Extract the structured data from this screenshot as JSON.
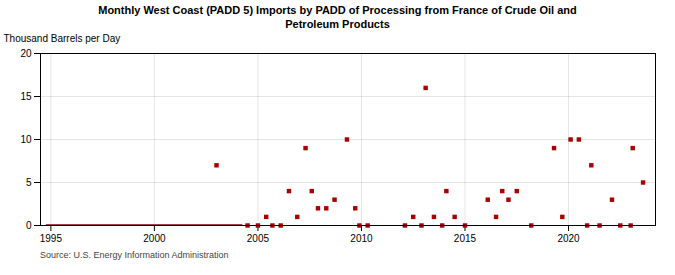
{
  "chart_data": {
    "type": "scatter",
    "title": "Monthly West Coast (PADD 5) Imports by PADD of Processing from France of Crude Oil and\nPetroleum Products",
    "ylabel": "Thousand Barrels per Day",
    "source": "Source: U.S. Energy Information Administration",
    "series": [
      {
        "type": "line",
        "color": "#8b0000",
        "x": [
          1994.8,
          2004.2
        ],
        "values": [
          0,
          0
        ]
      },
      {
        "type": "scatter",
        "marker": "square",
        "color": "#aa0000",
        "x": [
          2003.0,
          2005.4,
          2006.5,
          2006.9,
          2007.3,
          2007.6,
          2007.9,
          2008.3,
          2008.7,
          2009.3,
          2009.7,
          2012.5,
          2013.1,
          2013.5,
          2014.1,
          2014.5,
          2016.1,
          2016.5,
          2016.8,
          2017.1,
          2017.5,
          2019.3,
          2019.7,
          2020.1,
          2020.5,
          2021.1,
          2022.1,
          2023.1,
          2023.6
        ],
        "values": [
          7,
          1,
          4,
          1,
          9,
          4,
          2,
          2,
          3,
          10,
          2,
          1,
          16,
          1,
          4,
          1,
          3,
          1,
          4,
          3,
          4,
          9,
          1,
          10,
          10,
          7,
          3,
          9,
          5
        ]
      },
      {
        "type": "scatter",
        "marker": "square",
        "color": "#aa0000",
        "x": [
          2004.5,
          2005.0,
          2005.7,
          2006.1,
          2009.9,
          2010.3,
          2012.1,
          2012.9,
          2013.9,
          2015.0,
          2018.2,
          2020.9,
          2021.5,
          2022.5,
          2023.0
        ],
        "values": [
          0,
          0,
          0,
          0,
          0,
          0,
          0,
          0,
          0,
          0,
          0,
          0,
          0,
          0,
          0
        ]
      }
    ],
    "xlim": [
      1994.5,
      2024.2
    ],
    "xticks": [
      1995,
      2000,
      2005,
      2010,
      2015,
      2020
    ],
    "ylim": [
      0,
      20
    ],
    "yticks": [
      0,
      5,
      10,
      15,
      20
    ],
    "grid": true
  }
}
